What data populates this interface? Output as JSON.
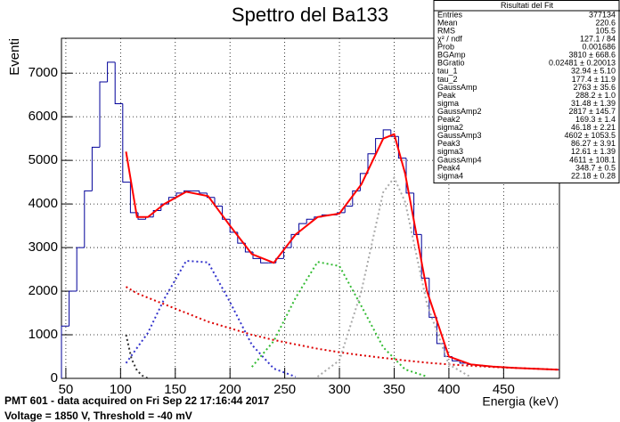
{
  "chart_data": {
    "type": "histogram",
    "title": "Spettro del Ba133",
    "xlabel": "Energia (keV)",
    "ylabel": "Eventi",
    "footer": [
      "PMT 601 - data acquired on Fri Sep 22 17:16:44 2017",
      "Voltage = 1850 V, Threshold = -40 mV"
    ],
    "color": "#000099",
    "bins": [
      46,
      53,
      60,
      67,
      74,
      81,
      88,
      95,
      102,
      109,
      116,
      123,
      130,
      137,
      144,
      151,
      158,
      165,
      172,
      179,
      186,
      193,
      200,
      207,
      214,
      221,
      228,
      235,
      242,
      249,
      256,
      263,
      270,
      277,
      284,
      291,
      298,
      305,
      312,
      319,
      326,
      333,
      340,
      347,
      354,
      361,
      368,
      375,
      382,
      389,
      396,
      403,
      410,
      417,
      424,
      431,
      438,
      445,
      452,
      459,
      466,
      473,
      480,
      487,
      494,
      501
    ],
    "values": [
      1200,
      2000,
      3000,
      4300,
      5300,
      6800,
      7250,
      6300,
      4500,
      3800,
      3650,
      3700,
      3850,
      4000,
      4150,
      4250,
      4300,
      4300,
      4250,
      4150,
      3950,
      3650,
      3350,
      3100,
      2900,
      2750,
      2650,
      2650,
      2750,
      3000,
      3300,
      3550,
      3650,
      3700,
      3750,
      3750,
      3800,
      3950,
      4300,
      4700,
      5150,
      5500,
      5700,
      5550,
      5050,
      4250,
      3300,
      2300,
      1400,
      800,
      500,
      400,
      350,
      320,
      300,
      280,
      270,
      260,
      250,
      240,
      230,
      220,
      215,
      210,
      200
    ],
    "fits": [
      {
        "color": "#ff0000",
        "dashed": false,
        "x": [
          105,
          115,
          125,
          140,
          160,
          180,
          200,
          220,
          240,
          260,
          280,
          300,
          320,
          340,
          350,
          360,
          380,
          400,
          420,
          440,
          460,
          480,
          500
        ],
        "values": [
          5200,
          3700,
          3700,
          4000,
          4280,
          4180,
          3500,
          2850,
          2650,
          3300,
          3700,
          3780,
          4450,
          5500,
          5600,
          4700,
          2000,
          500,
          320,
          270,
          240,
          220,
          200
        ]
      },
      {
        "color": "#dd0000",
        "dashed": true,
        "x": [
          105,
          115,
          125,
          140,
          160,
          180,
          200,
          220,
          240,
          260,
          280,
          300,
          320,
          340,
          350,
          360,
          380,
          400,
          420,
          440,
          460,
          480,
          500
        ],
        "values": [
          2100,
          1950,
          1850,
          1700,
          1500,
          1300,
          1150,
          1000,
          880,
          780,
          680,
          600,
          530,
          470,
          440,
          410,
          360,
          320,
          290,
          260,
          240,
          220,
          200
        ]
      },
      {
        "color": "#333333",
        "dashed": true,
        "x": [
          105,
          110,
          115,
          120,
          125
        ],
        "values": [
          1000,
          450,
          180,
          60,
          0
        ]
      },
      {
        "color": "#3333cc",
        "dashed": true,
        "x": [
          105,
          125,
          140,
          160,
          180,
          200,
          220,
          240,
          260
        ],
        "values": [
          350,
          1045,
          1826,
          2696,
          2660,
          1749,
          769,
          225,
          36
        ]
      },
      {
        "color": "#33bb33",
        "dashed": true,
        "x": [
          220,
          240,
          260,
          280,
          300,
          320,
          340,
          360,
          380
        ],
        "values": [
          263,
          857,
          1851,
          2671,
          2575,
          1660,
          713,
          205,
          40
        ]
      },
      {
        "color": "#aaaaaa",
        "dashed": true,
        "x": [
          280,
          300,
          320,
          340,
          350,
          360,
          380,
          400,
          420
        ],
        "values": [
          38,
          414,
          1996,
          4270,
          4603,
          4048,
          1704,
          319,
          27
        ]
      }
    ],
    "xlim": [
      46,
      501
    ],
    "ylim": [
      0,
      7800
    ],
    "xticks": [
      50,
      100,
      150,
      200,
      250,
      300,
      350,
      400,
      450
    ],
    "yticks": [
      0,
      1000,
      2000,
      3000,
      4000,
      5000,
      6000,
      7000
    ],
    "grid": true,
    "stats": {
      "title": "Risultati del Fit",
      "rows": [
        [
          "Entries",
          "377134"
        ],
        [
          "Mean",
          "220.6"
        ],
        [
          "RMS",
          "105.5"
        ],
        [
          "χ² / ndf",
          "127.1 / 84"
        ],
        [
          "Prob",
          "0.001686"
        ],
        [
          "BGAmp",
          "3810 ± 668.6"
        ],
        [
          "BGratio",
          "0.02481 ± 0.20013"
        ],
        [
          "tau_1",
          "32.94 ± 5.10"
        ],
        [
          "tau_2",
          "177.4 ± 11.9"
        ],
        [
          "GaussAmp",
          "2763 ± 35.6"
        ],
        [
          "Peak",
          "288.2 ± 1.0"
        ],
        [
          "sigma",
          "31.48 ± 1.39"
        ],
        [
          "GaussAmp2",
          "2817 ± 145.7"
        ],
        [
          "Peak2",
          "169.3 ± 1.4"
        ],
        [
          "sigma2",
          "46.18 ± 2.21"
        ],
        [
          "GaussAmp3",
          "4602 ± 1053.5"
        ],
        [
          "Peak3",
          "86.27 ± 3.91"
        ],
        [
          "sigma3",
          "12.61 ± 1.39"
        ],
        [
          "GaussAmp4",
          "4611 ± 108.1"
        ],
        [
          "Peak4",
          "348.7 ± 0.5"
        ],
        [
          "sigma4",
          "22.18 ± 0.28"
        ]
      ]
    }
  }
}
